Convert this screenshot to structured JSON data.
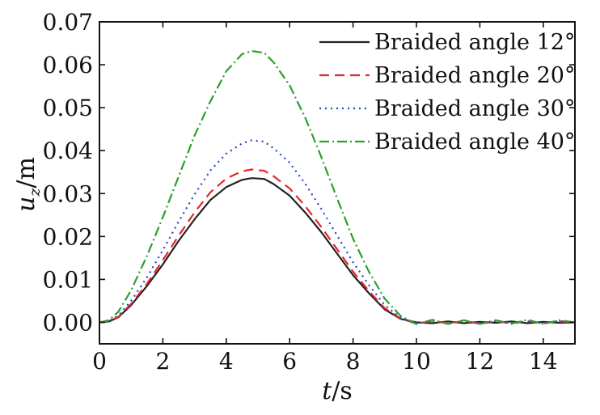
{
  "chart_data": {
    "type": "line",
    "xlabel": "t/s",
    "ylabel_main": "u",
    "ylabel_sub": "z",
    "ylabel_unit": "/m",
    "xlim": [
      0,
      15
    ],
    "ylim": [
      -0.005,
      0.07
    ],
    "xticks": [
      0,
      2,
      4,
      6,
      8,
      10,
      12,
      14
    ],
    "xtick_labels": [
      "0",
      "2",
      "4",
      "6",
      "8",
      "10",
      "12",
      "14"
    ],
    "yticks": [
      0.0,
      0.01,
      0.02,
      0.03,
      0.04,
      0.05,
      0.06,
      0.07
    ],
    "ytick_labels": [
      "0.00",
      "0.01",
      "0.02",
      "0.03",
      "0.04",
      "0.05",
      "0.06",
      "0.07"
    ],
    "grid": false,
    "legend_position": "top-right",
    "series": [
      {
        "name": "Braided angle 12°",
        "color": "#222222",
        "dash": "",
        "x": [
          0,
          0.3,
          0.6,
          1.0,
          1.5,
          2.0,
          2.5,
          3.0,
          3.5,
          4.0,
          4.5,
          4.8,
          5.2,
          5.5,
          6.0,
          6.5,
          7.0,
          7.5,
          8.0,
          8.5,
          9.0,
          9.5,
          10.0,
          10.5,
          11.0,
          11.5,
          12.0,
          12.5,
          13.0,
          13.5,
          14.0,
          14.5,
          15.0
        ],
        "y": [
          0.0,
          0.0002,
          0.0012,
          0.004,
          0.0085,
          0.0135,
          0.019,
          0.024,
          0.0285,
          0.0315,
          0.0332,
          0.0336,
          0.0334,
          0.0322,
          0.0295,
          0.0255,
          0.021,
          0.016,
          0.011,
          0.0068,
          0.003,
          0.0008,
          0.0,
          -0.0002,
          0.0002,
          -0.0002,
          0.0001,
          -0.0001,
          0.0002,
          -0.0002,
          0.0001,
          -0.0001,
          0.0
        ]
      },
      {
        "name": "Braided angle 20°",
        "color": "#e5262b",
        "dash": "12 7",
        "x": [
          0,
          0.3,
          0.6,
          1.0,
          1.5,
          2.0,
          2.5,
          3.0,
          3.5,
          4.0,
          4.5,
          4.8,
          5.2,
          5.5,
          6.0,
          6.5,
          7.0,
          7.5,
          8.0,
          8.5,
          9.0,
          9.5,
          10.0,
          10.5,
          11.0,
          11.5,
          12.0,
          12.5,
          13.0,
          13.5,
          14.0,
          14.5,
          15.0
        ],
        "y": [
          0.0,
          0.0003,
          0.0013,
          0.0043,
          0.009,
          0.0145,
          0.0202,
          0.0256,
          0.0303,
          0.0335,
          0.0352,
          0.0356,
          0.0353,
          0.034,
          0.0312,
          0.027,
          0.0222,
          0.017,
          0.0118,
          0.0073,
          0.0033,
          0.0009,
          -0.0003,
          0.0003,
          -0.0002,
          0.0003,
          -0.0003,
          0.0002,
          -0.0002,
          0.0003,
          -0.0002,
          0.0002,
          0.0
        ]
      },
      {
        "name": "Braided angle 30°",
        "color": "#2545c9",
        "dash": "2 5",
        "x": [
          0,
          0.3,
          0.6,
          1.0,
          1.5,
          2.0,
          2.5,
          3.0,
          3.5,
          4.0,
          4.5,
          4.8,
          5.2,
          5.5,
          6.0,
          6.5,
          7.0,
          7.5,
          8.0,
          8.5,
          9.0,
          9.5,
          10.0,
          10.5,
          11.0,
          11.5,
          12.0,
          12.5,
          13.0,
          13.5,
          14.0,
          14.5,
          15.0
        ],
        "y": [
          0.0,
          0.0003,
          0.0016,
          0.005,
          0.0105,
          0.0168,
          0.0235,
          0.0298,
          0.0354,
          0.0393,
          0.0417,
          0.0424,
          0.0421,
          0.0405,
          0.0372,
          0.0322,
          0.0264,
          0.0202,
          0.014,
          0.0087,
          0.004,
          0.0011,
          -0.0003,
          0.0003,
          -0.0003,
          0.0003,
          -0.0002,
          0.0003,
          -0.0003,
          0.0002,
          -0.0002,
          0.0003,
          0.0
        ]
      },
      {
        "name": "Braided angle 40°",
        "color": "#2aa02a",
        "dash": "12 4 2 4",
        "x": [
          0,
          0.3,
          0.6,
          1.0,
          1.5,
          2.0,
          2.5,
          3.0,
          3.5,
          4.0,
          4.5,
          4.8,
          5.2,
          5.5,
          6.0,
          6.5,
          7.0,
          7.5,
          8.0,
          8.5,
          9.0,
          9.5,
          10.0,
          10.5,
          11.0,
          11.5,
          12.0,
          12.5,
          13.0,
          13.5,
          14.0,
          14.5,
          15.0
        ],
        "y": [
          0.0,
          0.0005,
          0.0025,
          0.0075,
          0.0155,
          0.0245,
          0.034,
          0.0435,
          0.0515,
          0.0585,
          0.0625,
          0.0632,
          0.0628,
          0.0605,
          0.0552,
          0.0475,
          0.0385,
          0.0288,
          0.0195,
          0.0118,
          0.0055,
          0.0015,
          -0.0004,
          0.0006,
          -0.0004,
          0.0005,
          -0.0004,
          0.0005,
          -0.0003,
          0.0006,
          -0.0004,
          0.0005,
          0.0
        ]
      }
    ]
  }
}
